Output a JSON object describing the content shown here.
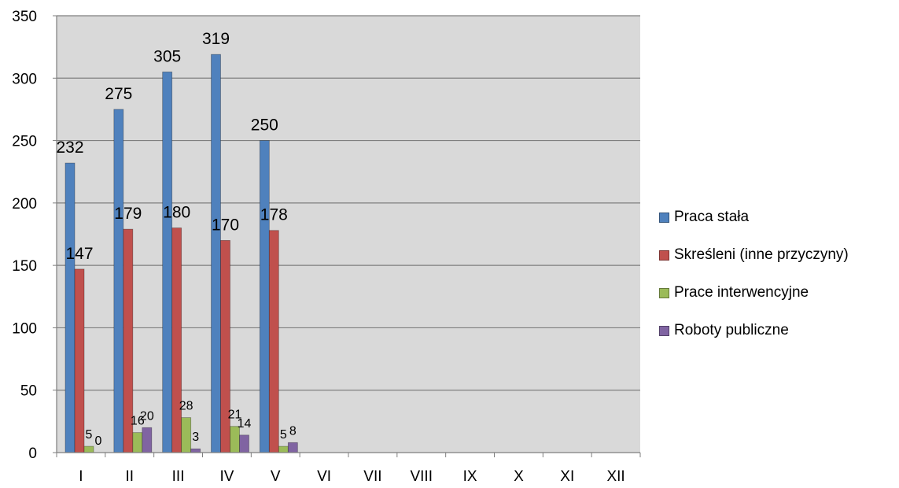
{
  "chart_data": {
    "type": "bar",
    "categories": [
      "I",
      "II",
      "III",
      "IV",
      "V",
      "VI",
      "VII",
      "VIII",
      "IX",
      "X",
      "XI",
      "XII"
    ],
    "series": [
      {
        "name": "Praca stała",
        "color": "#4F81BD",
        "values": [
          232,
          275,
          305,
          319,
          250,
          null,
          null,
          null,
          null,
          null,
          null,
          null
        ]
      },
      {
        "name": "Skreśleni (inne przyczyny)",
        "color": "#C0504D",
        "values": [
          147,
          179,
          180,
          170,
          178,
          null,
          null,
          null,
          null,
          null,
          null,
          null
        ]
      },
      {
        "name": "Prace interwencyjne",
        "color": "#9BBB59",
        "values": [
          5,
          16,
          28,
          21,
          5,
          null,
          null,
          null,
          null,
          null,
          null,
          null
        ]
      },
      {
        "name": "Roboty publiczne",
        "color": "#8064A2",
        "values": [
          0,
          20,
          3,
          14,
          8,
          null,
          null,
          null,
          null,
          null,
          null,
          null
        ]
      }
    ],
    "title": "",
    "xlabel": "",
    "ylabel": "",
    "ylim": [
      0,
      350
    ],
    "yticks": [
      0,
      50,
      100,
      150,
      200,
      250,
      300,
      350
    ],
    "grid": true,
    "legend_position": "right"
  }
}
